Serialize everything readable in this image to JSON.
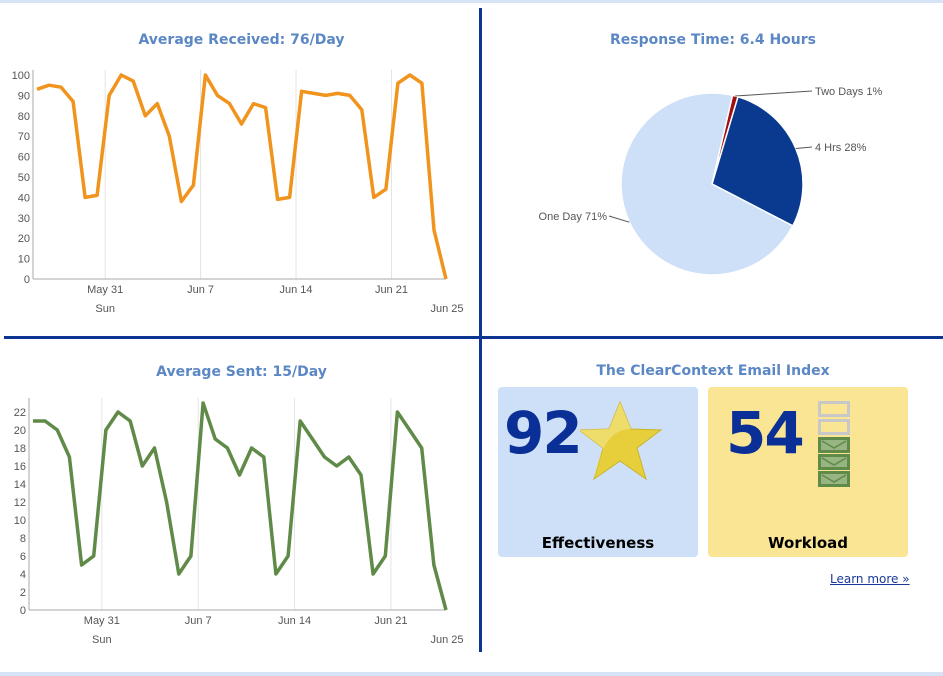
{
  "received": {
    "title": "Average Received: 76/Day",
    "chart_data": {
      "type": "line",
      "title": "Average Received: 76/Day",
      "x_range": [
        "May 26",
        "Jun 25"
      ],
      "x_ticks": [
        {
          "label": "May 31",
          "sublabel": "Sun"
        },
        {
          "label": "Jun 7"
        },
        {
          "label": "Jun 14"
        },
        {
          "label": "Jun 21"
        },
        {
          "label": "Jun 25"
        }
      ],
      "y_ticks": [
        0,
        10,
        20,
        30,
        40,
        50,
        60,
        70,
        80,
        90,
        100
      ],
      "ylim": [
        0,
        100
      ],
      "grid": "vertical",
      "color": "#f0941e",
      "values": [
        93,
        95,
        94,
        87,
        40,
        41,
        90,
        100,
        97,
        80,
        86,
        70,
        38,
        46,
        100,
        90,
        86,
        76,
        86,
        84,
        39,
        40,
        92,
        91,
        90,
        91,
        90,
        83,
        40,
        44,
        96,
        100,
        96,
        24,
        0
      ]
    }
  },
  "sent": {
    "title": "Average Sent: 15/Day",
    "chart_data": {
      "type": "line",
      "title": "Average Sent: 15/Day",
      "x_range": [
        "May 26",
        "Jun 25"
      ],
      "x_ticks": [
        {
          "label": "May 31",
          "sublabel": "Sun"
        },
        {
          "label": "Jun 7"
        },
        {
          "label": "Jun 14"
        },
        {
          "label": "Jun 21"
        },
        {
          "label": "Jun 25"
        }
      ],
      "y_ticks": [
        0,
        2,
        4,
        6,
        8,
        10,
        12,
        14,
        16,
        18,
        20,
        22
      ],
      "ylim": [
        0,
        23
      ],
      "grid": "vertical",
      "color": "#5f8a48",
      "values": [
        21,
        21,
        20,
        17,
        5,
        6,
        20,
        22,
        21,
        16,
        18,
        12,
        4,
        6,
        23,
        19,
        18,
        15,
        18,
        17,
        4,
        6,
        21,
        19,
        17,
        16,
        17,
        15,
        4,
        6,
        22,
        20,
        18,
        5,
        0
      ]
    }
  },
  "response": {
    "title": "Response Time: 6.4 Hours",
    "chart_data": {
      "type": "pie",
      "title": "Response Time: 6.4 Hours",
      "slices": [
        {
          "label": "Two Days 1%",
          "value": 1,
          "color": "#a30f0f"
        },
        {
          "label": "4 Hrs 28%",
          "value": 28,
          "color": "#0a3a8f"
        },
        {
          "label": "One Day 71%",
          "value": 71,
          "color": "#cde0f8"
        }
      ]
    }
  },
  "index": {
    "title": "The ClearContext Email Index",
    "effectiveness": {
      "value": "92",
      "label": "Effectiveness",
      "icon": "star-icon",
      "color": "#cde0f8"
    },
    "workload": {
      "value": "54",
      "label": "Workload",
      "icon": "envelope-stack-icon",
      "filled_boxes": 3,
      "total_boxes": 5,
      "color": "#fae594"
    },
    "learn_more": "Learn more »"
  }
}
